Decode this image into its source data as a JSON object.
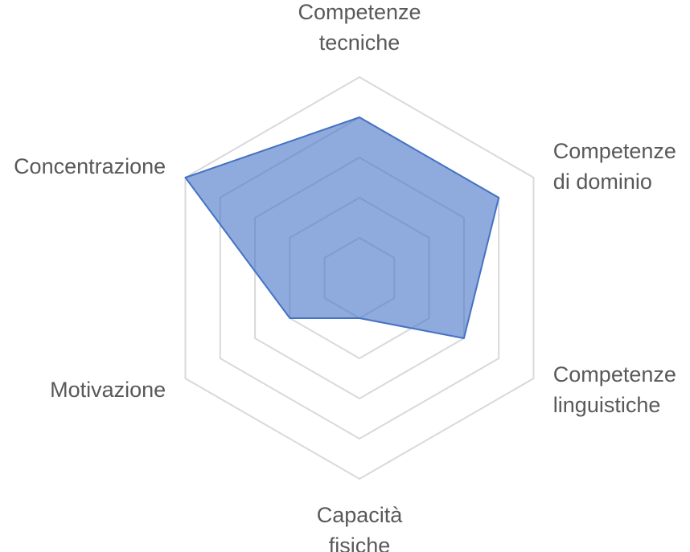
{
  "chart_data": {
    "type": "radar",
    "title": "",
    "axes": [
      [
        "Competenze",
        "tecniche"
      ],
      [
        "Competenze",
        "di dominio"
      ],
      [
        "Competenze",
        "linguistiche"
      ],
      [
        "Capacità",
        "fisiche"
      ],
      [
        "Motivazione"
      ],
      [
        "Concentrazione"
      ]
    ],
    "rings": 5,
    "max": 5,
    "grid": true,
    "legend": "none",
    "series": [
      {
        "values": [
          4,
          4,
          3,
          1,
          2,
          5
        ]
      }
    ],
    "colors": {
      "grid": "#d9d9d9",
      "series_fill": "#4472c4",
      "series_fill_opacity": 0.6,
      "series_stroke": "#4472c4",
      "label": "#595959"
    }
  }
}
